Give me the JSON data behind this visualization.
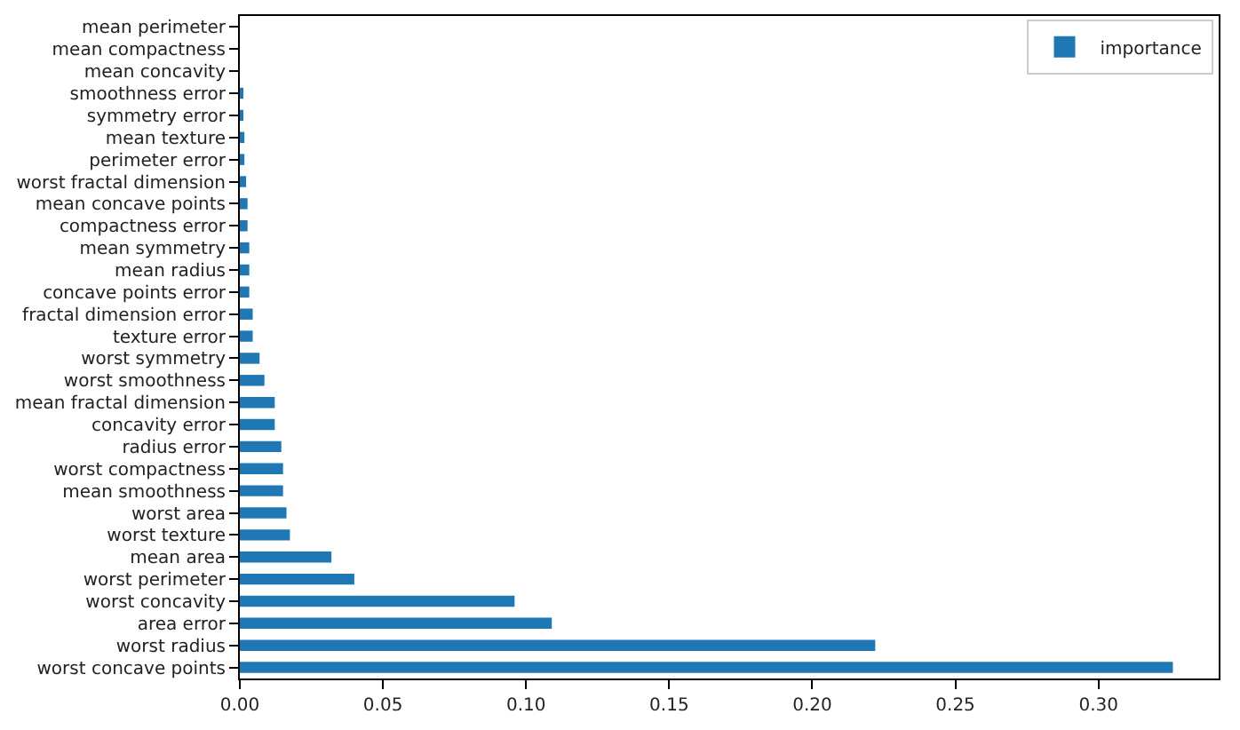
{
  "chart_data": {
    "type": "bar",
    "orientation": "horizontal",
    "categories": [
      "mean perimeter",
      "mean compactness",
      "mean concavity",
      "smoothness error",
      "symmetry error",
      "mean texture",
      "perimeter error",
      "worst fractal dimension",
      "mean concave points",
      "compactness error",
      "mean symmetry",
      "mean radius",
      "concave points error",
      "fractal dimension error",
      "texture error",
      "worst symmetry",
      "worst smoothness",
      "mean fractal dimension",
      "concavity error",
      "radius error",
      "worst compactness",
      "mean smoothness",
      "worst area",
      "worst texture",
      "mean area",
      "worst perimeter",
      "worst concavity",
      "area error",
      "worst radius",
      "worst concave points"
    ],
    "series": [
      {
        "name": "importance",
        "color": "#1f77b4",
        "values": [
          0,
          0,
          0,
          0.001,
          0.001,
          0.0016,
          0.0016,
          0.0022,
          0.0027,
          0.0027,
          0.0033,
          0.0033,
          0.0033,
          0.0045,
          0.0045,
          0.0069,
          0.0086,
          0.0122,
          0.0122,
          0.0145,
          0.0151,
          0.0151,
          0.0163,
          0.0175,
          0.032,
          0.04,
          0.096,
          0.109,
          0.222,
          0.326
        ]
      }
    ],
    "xlim": [
      0,
      0.342
    ],
    "xticks": [
      {
        "value": 0,
        "label": "0.00"
      },
      {
        "value": 0.05,
        "label": "0.05"
      },
      {
        "value": 0.1,
        "label": "0.10"
      },
      {
        "value": 0.15,
        "label": "0.15"
      },
      {
        "value": 0.2,
        "label": "0.20"
      },
      {
        "value": 0.25,
        "label": "0.25"
      },
      {
        "value": 0.3,
        "label": "0.30"
      }
    ],
    "legend": "top right"
  }
}
